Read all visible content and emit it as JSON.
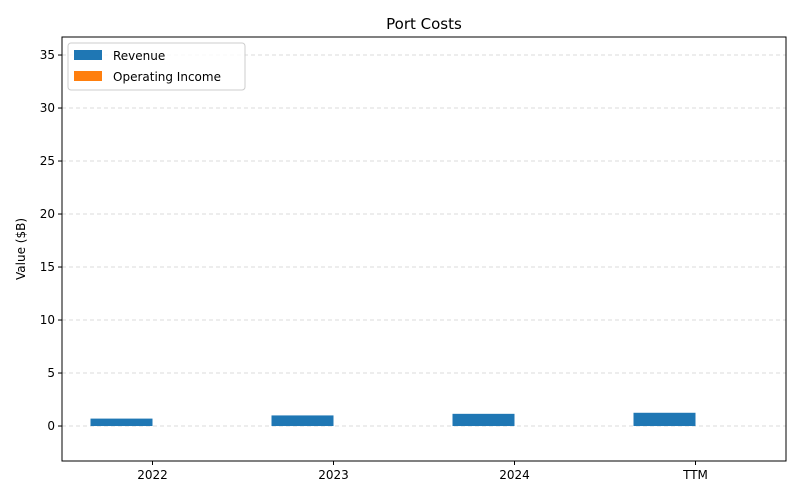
{
  "chart_data": {
    "type": "bar",
    "title": "Port Costs",
    "xlabel": "",
    "ylabel": "Value ($B)",
    "categories": [
      "2022",
      "2023",
      "2024",
      "TTM"
    ],
    "series": [
      {
        "name": "Revenue",
        "color": "#1f77b4",
        "values": [
          0.7,
          1.0,
          1.15,
          1.25
        ]
      },
      {
        "name": "Operating Income",
        "color": "#ff7f0e",
        "values": [
          0,
          0,
          0,
          0
        ]
      }
    ],
    "ylim": [
      -3.3,
      36.7
    ],
    "yticks": [
      0,
      5,
      10,
      15,
      20,
      25,
      30,
      35
    ],
    "grid": "y-dashed",
    "legend_position": "upper-left"
  }
}
